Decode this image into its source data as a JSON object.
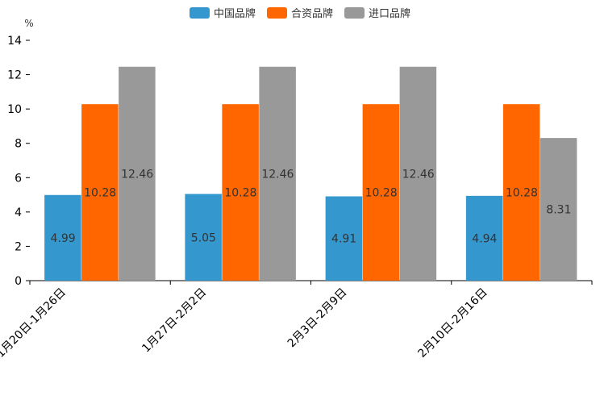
{
  "chart_data": {
    "type": "bar",
    "title": "",
    "xlabel": "",
    "ylabel": "%",
    "ylim": [
      0,
      14
    ],
    "yticks": [
      0,
      2,
      4,
      6,
      8,
      10,
      12,
      14
    ],
    "grid": false,
    "legend_position": "top-center",
    "categories": [
      "1月20日-1月26日",
      "1月27日-2月2日",
      "2月3日-2月9日",
      "2月10日-2月16日"
    ],
    "series": [
      {
        "name": "中国品牌",
        "color": "#3498cf",
        "values": [
          4.99,
          5.05,
          4.91,
          4.94
        ],
        "labels": [
          "4.99",
          "5.05",
          "4.91",
          "4.94"
        ]
      },
      {
        "name": "合资品牌",
        "color": "#ff6600",
        "values": [
          10.28,
          10.28,
          10.28,
          10.28
        ],
        "labels": [
          "10.28",
          "10.28",
          "10.28",
          "10.28"
        ]
      },
      {
        "name": "进口品牌",
        "color": "#999999",
        "values": [
          12.46,
          12.46,
          12.46,
          8.31
        ],
        "labels": [
          "12.46",
          "12.46",
          "12.46",
          "8.31"
        ]
      }
    ]
  }
}
